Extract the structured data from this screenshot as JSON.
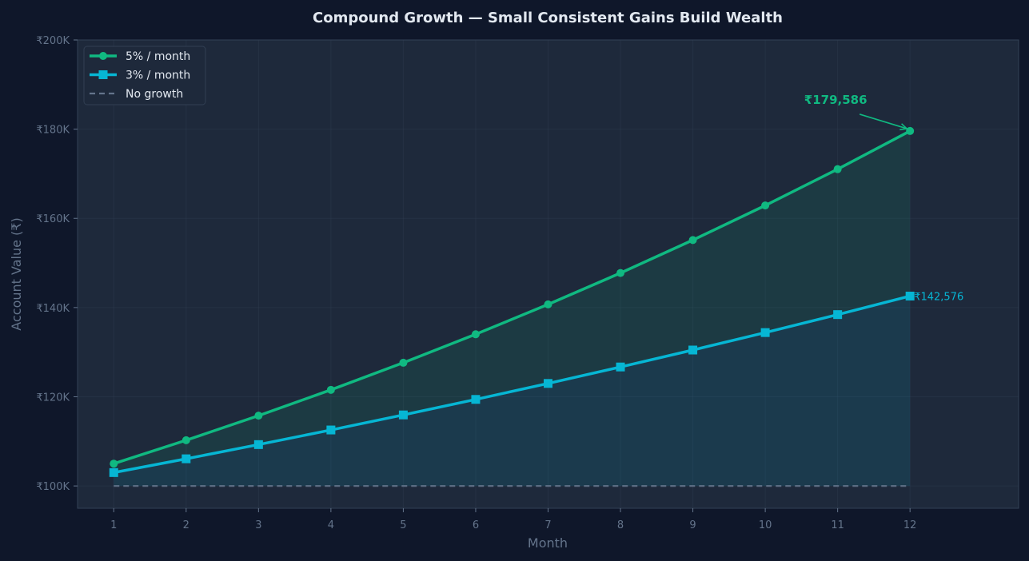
{
  "chart_data": {
    "type": "line",
    "title": "Compound Growth — Small Consistent Gains Build Wealth",
    "xlabel": "Month",
    "ylabel": "Account Value (₹)",
    "x": [
      1,
      2,
      3,
      4,
      5,
      6,
      7,
      8,
      9,
      10,
      11,
      12
    ],
    "xlim": [
      0.5,
      13.5
    ],
    "ylim": [
      95000,
      200000
    ],
    "yticks": [
      100000,
      120000,
      140000,
      160000,
      180000,
      200000
    ],
    "ytick_labels": [
      "₹100K",
      "₹120K",
      "₹140K",
      "₹160K",
      "₹180K",
      "₹200K"
    ],
    "grid": true,
    "legend_position": "top-left",
    "series": [
      {
        "name": "5% / month",
        "color": "#10b981",
        "marker": "circle",
        "line_style": "solid",
        "fill_to": "3% / month",
        "values": [
          105000,
          110250,
          115763,
          121551,
          127628,
          134010,
          140710,
          147746,
          155133,
          162889,
          171034,
          179586
        ]
      },
      {
        "name": "3% / month",
        "color": "#06b6d4",
        "marker": "square",
        "line_style": "solid",
        "fill_to": "No growth",
        "values": [
          103000,
          106090,
          109273,
          112551,
          115927,
          119405,
          122987,
          126677,
          130477,
          134392,
          138423,
          142576
        ]
      },
      {
        "name": "No growth",
        "color": "#64748b",
        "marker": "none",
        "line_style": "dashed",
        "values": [
          100000,
          100000,
          100000,
          100000,
          100000,
          100000,
          100000,
          100000,
          100000,
          100000,
          100000,
          100000
        ]
      }
    ],
    "annotations": [
      {
        "text": "₹179,586",
        "x": 12,
        "y": 179586,
        "series": "5% / month",
        "style": "bold-arrow"
      },
      {
        "text": "₹142,576",
        "x": 12,
        "y": 142576,
        "series": "3% / month",
        "style": "label-right"
      }
    ]
  },
  "colors": {
    "background": "#0f172a",
    "plot_background": "#1e293b",
    "grid": "#334155",
    "muted_text": "#64748b",
    "title_text": "#e2e8f0"
  }
}
